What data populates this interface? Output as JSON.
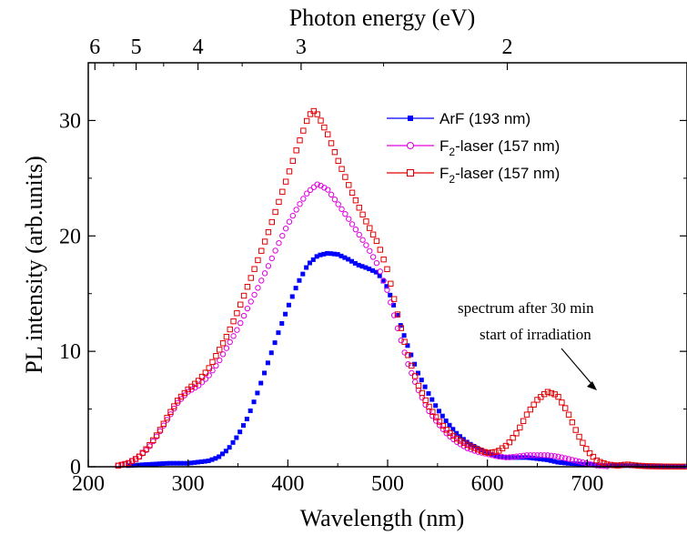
{
  "chart_data": {
    "type": "scatter",
    "xlabel": "Wavelength (nm)",
    "ylabel": "PL intensity (arb.units)",
    "top_axis_label": "Photon energy (eV)",
    "xlim": [
      200,
      800
    ],
    "ylim": [
      0,
      35
    ],
    "x_ticks": [
      200,
      300,
      400,
      500,
      600,
      700
    ],
    "x_tick_labels": [
      "200",
      "300",
      "400",
      "500",
      "600",
      "700"
    ],
    "y_ticks": [
      0,
      10,
      20,
      30
    ],
    "y_tick_labels": [
      "0",
      "10",
      "20",
      "30"
    ],
    "top_ticks_eV": [
      6,
      5,
      4,
      3,
      2
    ],
    "top_tick_labels": [
      "6",
      "5",
      "4",
      "3",
      "2"
    ],
    "legend_position": "top-right",
    "grid": false,
    "series": [
      {
        "name": "ArF (193 nm)",
        "name_parts": [
          "ArF (193 nm)",
          "",
          ""
        ],
        "color": "#0000ff",
        "marker": "filled-square",
        "x": [
          240,
          260,
          280,
          300,
          320,
          330,
          340,
          350,
          360,
          370,
          380,
          390,
          400,
          410,
          420,
          430,
          440,
          450,
          460,
          470,
          480,
          490,
          500,
          510,
          520,
          530,
          540,
          550,
          560,
          570,
          580,
          590,
          600,
          610,
          620,
          630,
          640,
          650,
          660,
          670,
          680,
          700,
          720,
          740,
          760,
          780,
          800
        ],
        "y": [
          0.1,
          0.2,
          0.3,
          0.3,
          0.5,
          0.8,
          1.5,
          2.7,
          4.3,
          6.5,
          9.0,
          11.5,
          13.8,
          15.9,
          17.5,
          18.3,
          18.5,
          18.4,
          18.0,
          17.5,
          17.2,
          16.8,
          15.5,
          13.0,
          10.5,
          8.2,
          6.5,
          5.0,
          3.8,
          2.8,
          2.1,
          1.6,
          1.2,
          0.9,
          0.8,
          0.8,
          0.8,
          0.7,
          0.6,
          0.4,
          0.3,
          0.2,
          0.1,
          0.1,
          0.05,
          0.05,
          0.02
        ]
      },
      {
        "name": "F2-laser (157 nm)",
        "name_parts": [
          "F",
          "2",
          "-laser (157 nm)"
        ],
        "color": "#e000e0",
        "marker": "open-circle",
        "x": [
          230,
          240,
          250,
          260,
          270,
          280,
          290,
          300,
          310,
          320,
          330,
          340,
          350,
          360,
          370,
          380,
          390,
          400,
          410,
          420,
          430,
          440,
          450,
          460,
          470,
          480,
          490,
          500,
          510,
          520,
          530,
          540,
          550,
          560,
          570,
          580,
          590,
          600,
          610,
          620,
          630,
          640,
          650,
          660,
          670,
          680,
          690,
          700,
          710,
          720
        ],
        "y": [
          0.1,
          0.3,
          0.8,
          1.6,
          2.8,
          4.2,
          5.6,
          6.5,
          7.0,
          7.8,
          9.0,
          10.5,
          12.0,
          13.8,
          15.5,
          17.3,
          19.2,
          21.0,
          22.5,
          23.8,
          24.5,
          24.0,
          22.8,
          21.6,
          20.3,
          19.0,
          17.5,
          15.2,
          12.0,
          9.0,
          6.8,
          5.0,
          3.8,
          2.8,
          2.1,
          1.6,
          1.3,
          1.1,
          0.9,
          0.8,
          0.9,
          1.0,
          1.0,
          1.0,
          0.9,
          0.7,
          0.5,
          0.3,
          0.1,
          0.05
        ]
      },
      {
        "name": "F2-laser (157 nm)",
        "name_parts": [
          "F",
          "2",
          "-laser (157 nm)"
        ],
        "color": "#e00000",
        "marker": "open-square",
        "x": [
          230,
          240,
          250,
          260,
          270,
          280,
          290,
          300,
          310,
          320,
          330,
          340,
          350,
          360,
          370,
          380,
          390,
          400,
          410,
          420,
          425,
          430,
          440,
          450,
          460,
          470,
          480,
          490,
          500,
          510,
          520,
          530,
          540,
          550,
          560,
          570,
          580,
          590,
          600,
          610,
          620,
          630,
          640,
          650,
          660,
          670,
          680,
          690,
          700,
          710,
          720,
          730,
          740,
          750,
          760,
          780,
          800
        ],
        "y": [
          0.1,
          0.3,
          0.8,
          1.7,
          2.9,
          4.4,
          5.8,
          6.7,
          7.4,
          8.4,
          9.9,
          11.5,
          13.5,
          15.7,
          17.9,
          20.2,
          22.7,
          25.2,
          27.8,
          30.2,
          30.9,
          30.5,
          28.8,
          26.6,
          24.6,
          22.7,
          21.0,
          19.4,
          17.0,
          13.2,
          9.8,
          7.2,
          5.4,
          4.1,
          3.1,
          2.4,
          1.9,
          1.5,
          1.2,
          1.3,
          1.9,
          3.0,
          4.6,
          5.8,
          6.5,
          6.2,
          4.8,
          2.9,
          1.4,
          0.5,
          0.2,
          0.1,
          0.2,
          0.1,
          0.05,
          0.02,
          0.01
        ]
      }
    ],
    "annotation": {
      "lines": [
        "spectrum after 30 min",
        "start of irradiation"
      ],
      "points_to": [
        660,
        6.5
      ]
    }
  }
}
